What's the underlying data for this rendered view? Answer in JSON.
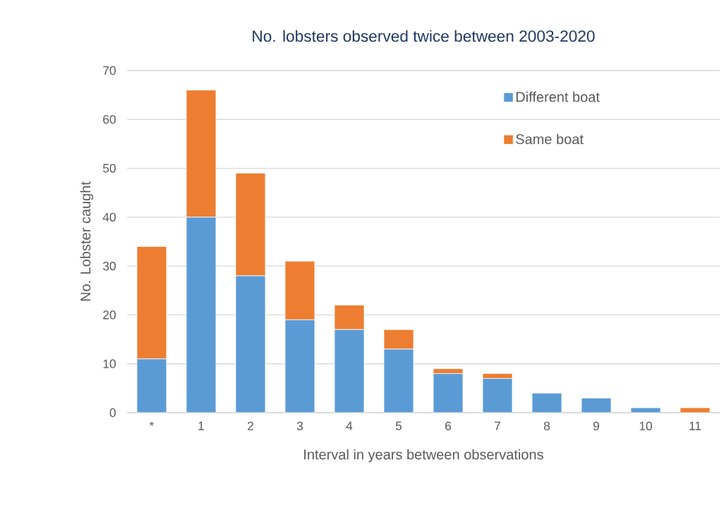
{
  "chart_data": {
    "type": "bar",
    "stacked": true,
    "title": "No. lobsters observed twice between 2003-2020",
    "xlabel": "Interval in years between observations",
    "ylabel": "No. Lobster caught",
    "categories": [
      "*",
      "1",
      "2",
      "3",
      "4",
      "5",
      "6",
      "7",
      "8",
      "9",
      "10",
      "11"
    ],
    "series": [
      {
        "name": "Different boat",
        "color": "#5b9bd5",
        "values": [
          11,
          40,
          28,
          19,
          17,
          13,
          8,
          7,
          4,
          3,
          1,
          0
        ]
      },
      {
        "name": "Same boat",
        "color": "#ed7d31",
        "values": [
          23,
          26,
          21,
          12,
          5,
          4,
          1,
          1,
          0,
          0,
          0,
          1
        ]
      }
    ],
    "ylim": [
      0,
      70
    ],
    "yticks": [
      0,
      10,
      20,
      30,
      40,
      50,
      60,
      70
    ],
    "grid": "y",
    "legend": "top right"
  }
}
